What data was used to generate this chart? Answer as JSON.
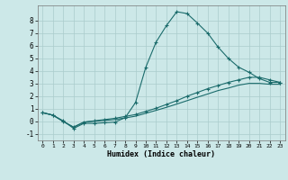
{
  "xlabel": "Humidex (Indice chaleur)",
  "background_color": "#cce8e8",
  "grid_color": "#aacccc",
  "line_color": "#1a6b6b",
  "xlim": [
    -0.5,
    23.5
  ],
  "ylim": [
    -1.5,
    9.2
  ],
  "yticks": [
    -1,
    0,
    1,
    2,
    3,
    4,
    5,
    6,
    7,
    8
  ],
  "xticks": [
    0,
    1,
    2,
    3,
    4,
    5,
    6,
    7,
    8,
    9,
    10,
    11,
    12,
    13,
    14,
    15,
    16,
    17,
    18,
    19,
    20,
    21,
    22,
    23
  ],
  "line1_x": [
    0,
    1,
    2,
    3,
    4,
    5,
    6,
    7,
    8,
    9,
    10,
    11,
    12,
    13,
    14,
    15,
    16,
    17,
    18,
    19,
    20,
    21,
    22,
    23
  ],
  "line1_y": [
    0.7,
    0.5,
    0.05,
    -0.55,
    -0.15,
    -0.15,
    -0.1,
    -0.05,
    0.3,
    1.5,
    4.3,
    6.3,
    7.6,
    8.7,
    8.55,
    7.8,
    7.0,
    5.9,
    5.0,
    4.3,
    3.9,
    3.4,
    3.1,
    3.1
  ],
  "line2_x": [
    0,
    1,
    2,
    3,
    4,
    5,
    6,
    7,
    8,
    9,
    10,
    11,
    12,
    13,
    14,
    15,
    16,
    17,
    18,
    19,
    20,
    21,
    22,
    23
  ],
  "line2_y": [
    0.7,
    0.5,
    0.0,
    -0.45,
    -0.05,
    0.05,
    0.15,
    0.25,
    0.4,
    0.55,
    0.8,
    1.05,
    1.35,
    1.65,
    2.0,
    2.3,
    2.6,
    2.85,
    3.1,
    3.3,
    3.5,
    3.5,
    3.3,
    3.1
  ],
  "line3_x": [
    0,
    1,
    2,
    3,
    4,
    5,
    6,
    7,
    8,
    9,
    10,
    11,
    12,
    13,
    14,
    15,
    16,
    17,
    18,
    19,
    20,
    21,
    22,
    23
  ],
  "line3_y": [
    0.7,
    0.5,
    0.0,
    -0.45,
    -0.05,
    0.02,
    0.08,
    0.15,
    0.28,
    0.42,
    0.65,
    0.88,
    1.12,
    1.38,
    1.65,
    1.92,
    2.18,
    2.45,
    2.65,
    2.88,
    3.02,
    3.02,
    2.95,
    2.95
  ]
}
